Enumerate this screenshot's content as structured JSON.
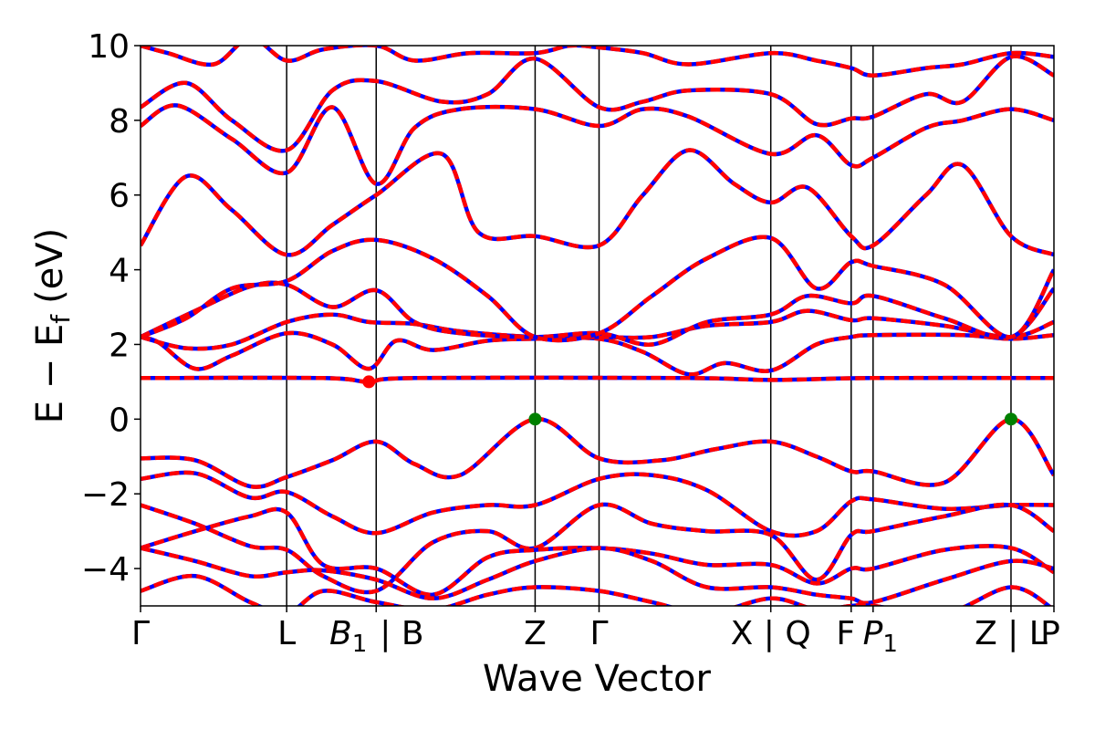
{
  "chart_data": {
    "type": "line",
    "title": "",
    "xlabel": "Wave Vector",
    "ylabel": "E − E",
    "ylabel_subscript": "f",
    "ylabel_unit": "(eV)",
    "ylim": [
      -5,
      10
    ],
    "y_ticks": [
      {
        "value": 10,
        "label": "10"
      },
      {
        "value": 8,
        "label": "8"
      },
      {
        "value": 6,
        "label": "6"
      },
      {
        "value": 4,
        "label": "4"
      },
      {
        "value": 2,
        "label": "2"
      },
      {
        "value": 0,
        "label": "0"
      },
      {
        "value": -2,
        "label": "−2"
      },
      {
        "value": -4,
        "label": "−4"
      }
    ],
    "xlim": [
      0,
      1
    ],
    "k_ticks": [
      {
        "pos": 0.0,
        "label": "Γ",
        "italic": false
      },
      {
        "pos": 0.16,
        "label": "L",
        "italic": false
      },
      {
        "pos": 0.258,
        "label": "B",
        "sub": "1",
        "italic": true
      },
      {
        "pos": 0.258,
        "label": "| B",
        "italic": false,
        "offset": 1
      },
      {
        "pos": 0.432,
        "label": "Z",
        "italic": false
      },
      {
        "pos": 0.502,
        "label": "Γ",
        "italic": false
      },
      {
        "pos": 0.69,
        "label": "X | Q",
        "italic": false
      },
      {
        "pos": 0.778,
        "label": "F",
        "italic": false
      },
      {
        "pos": 0.802,
        "label": "P",
        "sub": "1",
        "italic": true
      },
      {
        "pos": 0.953,
        "label": "Z | L",
        "italic": false
      },
      {
        "pos": 1.0,
        "label": "P",
        "italic": false
      }
    ],
    "k_lines": [
      0.16,
      0.258,
      0.432,
      0.502,
      0.69,
      0.778,
      0.802,
      0.953
    ],
    "series_colors": {
      "primary": "#ff0000",
      "overlay": "#0000ff"
    },
    "markers": [
      {
        "k": 0.25,
        "energy": 1.0,
        "color": "#ff0000",
        "name": "CBM"
      },
      {
        "k": 0.432,
        "energy": 0.0,
        "color": "#008000",
        "name": "VBM"
      },
      {
        "k": 0.953,
        "energy": 0.0,
        "color": "#008000",
        "name": "VBM"
      }
    ],
    "bands": [
      {
        "nodes": [
          [
            0,
            2.2
          ],
          [
            0.02,
            2.05
          ],
          [
            0.06,
            1.35
          ],
          [
            0.1,
            1.7
          ],
          [
            0.16,
            2.3
          ],
          [
            0.21,
            2.0
          ],
          [
            0.25,
            1.35
          ],
          [
            0.28,
            2.1
          ],
          [
            0.32,
            1.85
          ],
          [
            0.38,
            2.1
          ],
          [
            0.432,
            2.15
          ],
          [
            0.502,
            2.15
          ],
          [
            0.55,
            1.8
          ],
          [
            0.6,
            1.2
          ],
          [
            0.64,
            1.5
          ],
          [
            0.69,
            1.3
          ],
          [
            0.74,
            2.0
          ],
          [
            0.778,
            2.2
          ],
          [
            0.802,
            2.25
          ],
          [
            0.9,
            2.25
          ],
          [
            0.953,
            2.15
          ],
          [
            1,
            2.25
          ]
        ]
      },
      {
        "nodes": [
          [
            0,
            2.2
          ],
          [
            0.05,
            1.9
          ],
          [
            0.1,
            2.0
          ],
          [
            0.16,
            2.6
          ],
          [
            0.21,
            2.8
          ],
          [
            0.25,
            2.6
          ],
          [
            0.3,
            2.55
          ],
          [
            0.35,
            2.35
          ],
          [
            0.432,
            2.2
          ],
          [
            0.502,
            2.2
          ],
          [
            0.56,
            2.2
          ],
          [
            0.62,
            2.5
          ],
          [
            0.69,
            2.6
          ],
          [
            0.73,
            2.9
          ],
          [
            0.778,
            2.65
          ],
          [
            0.802,
            2.7
          ],
          [
            0.88,
            2.5
          ],
          [
            0.953,
            2.2
          ],
          [
            1,
            2.6
          ]
        ]
      },
      {
        "nodes": [
          [
            0,
            2.2
          ],
          [
            0.06,
            2.9
          ],
          [
            0.12,
            3.55
          ],
          [
            0.16,
            3.6
          ],
          [
            0.21,
            3.0
          ],
          [
            0.258,
            3.45
          ],
          [
            0.3,
            2.6
          ],
          [
            0.35,
            2.3
          ],
          [
            0.432,
            2.2
          ],
          [
            0.502,
            2.3
          ],
          [
            0.56,
            2.0
          ],
          [
            0.62,
            2.6
          ],
          [
            0.69,
            2.8
          ],
          [
            0.73,
            3.3
          ],
          [
            0.778,
            3.1
          ],
          [
            0.802,
            3.3
          ],
          [
            0.88,
            2.7
          ],
          [
            0.953,
            2.2
          ],
          [
            1,
            3.5
          ]
        ]
      },
      {
        "nodes": [
          [
            0,
            2.2
          ],
          [
            0.05,
            2.7
          ],
          [
            0.1,
            3.5
          ],
          [
            0.16,
            3.7
          ],
          [
            0.21,
            4.5
          ],
          [
            0.258,
            4.8
          ],
          [
            0.32,
            4.3
          ],
          [
            0.38,
            3.3
          ],
          [
            0.432,
            2.2
          ],
          [
            0.502,
            2.3
          ],
          [
            0.56,
            3.3
          ],
          [
            0.62,
            4.3
          ],
          [
            0.69,
            4.85
          ],
          [
            0.74,
            3.5
          ],
          [
            0.778,
            4.2
          ],
          [
            0.802,
            4.1
          ],
          [
            0.88,
            3.6
          ],
          [
            0.953,
            2.2
          ],
          [
            1,
            4.0
          ]
        ]
      },
      {
        "nodes": [
          [
            0,
            1.1
          ],
          [
            0.2,
            1.1
          ],
          [
            0.25,
            1.0
          ],
          [
            0.3,
            1.1
          ],
          [
            0.6,
            1.1
          ],
          [
            0.69,
            1.05
          ],
          [
            0.8,
            1.1
          ],
          [
            1,
            1.1
          ]
        ]
      },
      {
        "nodes": [
          [
            0,
            4.65
          ],
          [
            0.05,
            6.5
          ],
          [
            0.1,
            5.6
          ],
          [
            0.16,
            4.4
          ],
          [
            0.21,
            5.2
          ],
          [
            0.258,
            6.0
          ],
          [
            0.33,
            7.1
          ],
          [
            0.37,
            5.0
          ],
          [
            0.432,
            4.9
          ],
          [
            0.502,
            4.65
          ],
          [
            0.55,
            6.0
          ],
          [
            0.6,
            7.2
          ],
          [
            0.65,
            6.3
          ],
          [
            0.69,
            5.8
          ],
          [
            0.73,
            6.2
          ],
          [
            0.778,
            4.9
          ],
          [
            0.802,
            4.65
          ],
          [
            0.86,
            6.0
          ],
          [
            0.9,
            6.8
          ],
          [
            0.953,
            4.9
          ],
          [
            1,
            4.4
          ]
        ]
      },
      {
        "nodes": [
          [
            0,
            7.85
          ],
          [
            0.04,
            8.4
          ],
          [
            0.1,
            7.5
          ],
          [
            0.16,
            6.6
          ],
          [
            0.21,
            8.35
          ],
          [
            0.258,
            6.3
          ],
          [
            0.3,
            7.8
          ],
          [
            0.35,
            8.3
          ],
          [
            0.432,
            8.3
          ],
          [
            0.502,
            7.85
          ],
          [
            0.55,
            8.3
          ],
          [
            0.6,
            8.1
          ],
          [
            0.69,
            7.1
          ],
          [
            0.74,
            7.6
          ],
          [
            0.778,
            6.8
          ],
          [
            0.802,
            7.0
          ],
          [
            0.86,
            7.8
          ],
          [
            0.9,
            8.0
          ],
          [
            0.953,
            8.3
          ],
          [
            1,
            8.0
          ]
        ]
      },
      {
        "nodes": [
          [
            0,
            8.35
          ],
          [
            0.05,
            9.0
          ],
          [
            0.1,
            8.0
          ],
          [
            0.16,
            7.2
          ],
          [
            0.21,
            8.8
          ],
          [
            0.258,
            9.05
          ],
          [
            0.33,
            8.5
          ],
          [
            0.38,
            8.7
          ],
          [
            0.432,
            9.65
          ],
          [
            0.502,
            8.35
          ],
          [
            0.55,
            8.5
          ],
          [
            0.6,
            8.8
          ],
          [
            0.69,
            8.7
          ],
          [
            0.74,
            7.9
          ],
          [
            0.778,
            8.05
          ],
          [
            0.802,
            8.1
          ],
          [
            0.86,
            8.7
          ],
          [
            0.9,
            8.5
          ],
          [
            0.953,
            9.7
          ],
          [
            1,
            9.2
          ]
        ]
      },
      {
        "nodes": [
          [
            0,
            10.0
          ],
          [
            0.03,
            9.8
          ],
          [
            0.08,
            9.5
          ],
          [
            0.12,
            10.2
          ],
          [
            0.16,
            9.6
          ],
          [
            0.2,
            9.9
          ],
          [
            0.258,
            10.0
          ],
          [
            0.3,
            9.6
          ],
          [
            0.36,
            9.8
          ],
          [
            0.432,
            9.8
          ],
          [
            0.47,
            10.0
          ],
          [
            0.502,
            9.95
          ],
          [
            0.55,
            9.8
          ],
          [
            0.6,
            9.5
          ],
          [
            0.69,
            9.8
          ],
          [
            0.74,
            9.6
          ],
          [
            0.778,
            9.4
          ],
          [
            0.802,
            9.2
          ],
          [
            0.86,
            9.4
          ],
          [
            0.9,
            9.5
          ],
          [
            0.953,
            9.8
          ],
          [
            1,
            9.7
          ]
        ]
      },
      {
        "nodes": [
          [
            0,
            -1.05
          ],
          [
            0.06,
            -1.1
          ],
          [
            0.12,
            -1.8
          ],
          [
            0.16,
            -1.55
          ],
          [
            0.21,
            -1.1
          ],
          [
            0.258,
            -0.6
          ],
          [
            0.3,
            -1.2
          ],
          [
            0.35,
            -1.5
          ],
          [
            0.432,
            0.0
          ],
          [
            0.502,
            -1.05
          ],
          [
            0.57,
            -1.1
          ],
          [
            0.63,
            -0.8
          ],
          [
            0.69,
            -0.6
          ],
          [
            0.74,
            -1.0
          ],
          [
            0.778,
            -1.4
          ],
          [
            0.802,
            -1.4
          ],
          [
            0.88,
            -1.7
          ],
          [
            0.953,
            0.0
          ],
          [
            1,
            -1.5
          ]
        ]
      },
      {
        "nodes": [
          [
            0,
            -1.6
          ],
          [
            0.06,
            -1.45
          ],
          [
            0.12,
            -2.1
          ],
          [
            0.16,
            -1.95
          ],
          [
            0.21,
            -2.6
          ],
          [
            0.258,
            -3.05
          ],
          [
            0.32,
            -2.5
          ],
          [
            0.38,
            -2.3
          ],
          [
            0.432,
            -2.3
          ],
          [
            0.502,
            -1.6
          ],
          [
            0.56,
            -1.5
          ],
          [
            0.62,
            -1.9
          ],
          [
            0.69,
            -3.0
          ],
          [
            0.74,
            -3.0
          ],
          [
            0.778,
            -2.2
          ],
          [
            0.802,
            -2.15
          ],
          [
            0.88,
            -2.4
          ],
          [
            0.953,
            -2.3
          ],
          [
            1,
            -2.3
          ]
        ]
      },
      {
        "nodes": [
          [
            0,
            -2.3
          ],
          [
            0.06,
            -2.8
          ],
          [
            0.12,
            -3.4
          ],
          [
            0.16,
            -3.5
          ],
          [
            0.2,
            -4.2
          ],
          [
            0.258,
            -4.6
          ],
          [
            0.32,
            -3.3
          ],
          [
            0.38,
            -3.0
          ],
          [
            0.432,
            -3.45
          ],
          [
            0.502,
            -2.3
          ],
          [
            0.56,
            -2.8
          ],
          [
            0.62,
            -3.0
          ],
          [
            0.69,
            -3.1
          ],
          [
            0.74,
            -4.3
          ],
          [
            0.778,
            -3.1
          ],
          [
            0.802,
            -3.0
          ],
          [
            0.88,
            -2.6
          ],
          [
            0.953,
            -2.3
          ],
          [
            1,
            -3.0
          ]
        ]
      },
      {
        "nodes": [
          [
            0,
            -3.45
          ],
          [
            0.06,
            -3.0
          ],
          [
            0.12,
            -2.6
          ],
          [
            0.16,
            -2.5
          ],
          [
            0.2,
            -3.9
          ],
          [
            0.258,
            -4.0
          ],
          [
            0.32,
            -4.7
          ],
          [
            0.38,
            -3.7
          ],
          [
            0.432,
            -3.5
          ],
          [
            0.502,
            -3.45
          ],
          [
            0.56,
            -3.6
          ],
          [
            0.62,
            -3.9
          ],
          [
            0.69,
            -3.9
          ],
          [
            0.74,
            -4.4
          ],
          [
            0.778,
            -4.0
          ],
          [
            0.802,
            -4.0
          ],
          [
            0.88,
            -3.5
          ],
          [
            0.953,
            -3.45
          ],
          [
            1,
            -4.1
          ]
        ]
      },
      {
        "nodes": [
          [
            0,
            -3.45
          ],
          [
            0.06,
            -3.8
          ],
          [
            0.12,
            -4.2
          ],
          [
            0.16,
            -4.1
          ],
          [
            0.2,
            -4.05
          ],
          [
            0.258,
            -4.3
          ],
          [
            0.32,
            -4.8
          ],
          [
            0.38,
            -4.3
          ],
          [
            0.432,
            -3.8
          ],
          [
            0.502,
            -3.45
          ],
          [
            0.56,
            -3.8
          ],
          [
            0.62,
            -4.5
          ],
          [
            0.69,
            -4.5
          ],
          [
            0.74,
            -4.7
          ],
          [
            0.778,
            -4.8
          ],
          [
            0.802,
            -4.9
          ],
          [
            0.88,
            -4.3
          ],
          [
            0.953,
            -3.8
          ],
          [
            1,
            -4.0
          ]
        ]
      },
      {
        "nodes": [
          [
            0,
            -4.6
          ],
          [
            0.06,
            -4.2
          ],
          [
            0.12,
            -4.9
          ],
          [
            0.16,
            -5.2
          ],
          [
            0.2,
            -4.6
          ],
          [
            0.258,
            -4.9
          ],
          [
            0.32,
            -5.1
          ],
          [
            0.38,
            -4.7
          ],
          [
            0.432,
            -4.5
          ],
          [
            0.502,
            -4.6
          ],
          [
            0.56,
            -4.9
          ],
          [
            0.62,
            -5.2
          ],
          [
            0.69,
            -4.8
          ],
          [
            0.74,
            -5.1
          ],
          [
            0.778,
            -5.0
          ],
          [
            0.802,
            -5.0
          ],
          [
            0.88,
            -5.2
          ],
          [
            0.953,
            -4.5
          ],
          [
            1,
            -5.1
          ]
        ]
      }
    ]
  }
}
